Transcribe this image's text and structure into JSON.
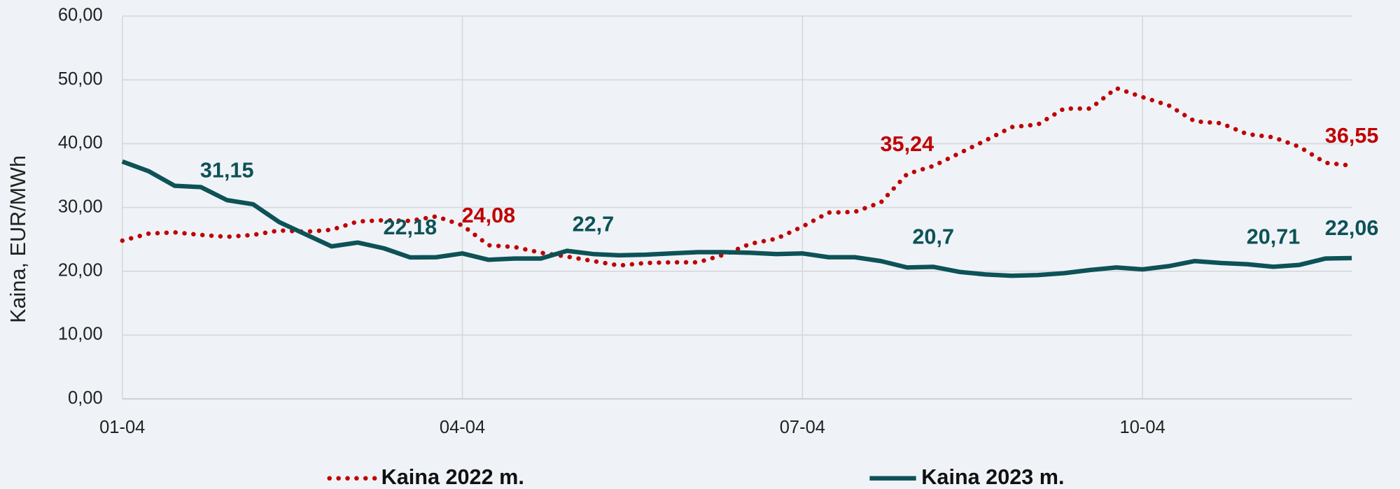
{
  "chart_data": {
    "type": "line",
    "y_label": "Kaina, EUR/MWh",
    "categories": [
      "01-04",
      null,
      null,
      null,
      null,
      null,
      null,
      null,
      null,
      null,
      null,
      null,
      null,
      "04-04",
      null,
      null,
      null,
      null,
      null,
      null,
      null,
      null,
      null,
      null,
      null,
      null,
      "07-04",
      null,
      null,
      null,
      null,
      null,
      null,
      null,
      null,
      null,
      null,
      null,
      null,
      "10-04",
      null,
      null,
      null,
      null,
      null,
      null,
      null,
      null
    ],
    "ylim": [
      0,
      60
    ],
    "yticks": [
      {
        "value": 0,
        "label": "0,00"
      },
      {
        "value": 10,
        "label": "10,00"
      },
      {
        "value": 20,
        "label": "20,00"
      },
      {
        "value": 30,
        "label": "30,00"
      },
      {
        "value": 40,
        "label": "40,00"
      },
      {
        "value": 50,
        "label": "50,00"
      },
      {
        "value": 60,
        "label": "60,00"
      }
    ],
    "grid": true,
    "legend": "bottom",
    "series": [
      {
        "name": "Kaina 2022 m.",
        "color": "#c00000",
        "style": "dotted",
        "values": [
          24.8,
          25.9,
          26.1,
          25.7,
          25.4,
          25.7,
          26.4,
          26.2,
          26.5,
          27.8,
          28.0,
          27.9,
          28.6,
          27.2,
          24.08,
          23.8,
          22.9,
          22.3,
          21.6,
          20.9,
          21.3,
          21.4,
          21.4,
          22.6,
          24.3,
          25.1,
          27.0,
          29.2,
          29.3,
          30.8,
          35.24,
          36.5,
          38.5,
          40.5,
          42.6,
          43.0,
          45.5,
          45.5,
          48.7,
          47.3,
          46.0,
          43.5,
          43.2,
          41.5,
          41.0,
          39.5,
          37.0,
          36.55
        ],
        "value_labels": [
          null,
          null,
          null,
          null,
          null,
          null,
          null,
          null,
          null,
          null,
          null,
          null,
          null,
          null,
          "24,08",
          null,
          null,
          null,
          null,
          null,
          null,
          null,
          null,
          null,
          null,
          null,
          null,
          null,
          null,
          null,
          "35,24",
          null,
          null,
          null,
          null,
          null,
          null,
          null,
          null,
          null,
          null,
          null,
          null,
          null,
          null,
          null,
          null,
          "36,55"
        ]
      },
      {
        "name": "Kaina 2023 m.",
        "color": "#0d5257",
        "style": "solid",
        "values": [
          37.2,
          35.7,
          33.4,
          33.2,
          31.15,
          30.5,
          27.7,
          25.8,
          23.9,
          24.5,
          23.6,
          22.18,
          22.2,
          22.8,
          21.8,
          22.0,
          22.0,
          23.2,
          22.7,
          22.5,
          22.6,
          22.8,
          23.0,
          23.0,
          22.9,
          22.7,
          22.8,
          22.2,
          22.2,
          21.6,
          20.6,
          20.7,
          19.9,
          19.5,
          19.3,
          19.4,
          19.7,
          20.2,
          20.6,
          20.3,
          20.8,
          21.6,
          21.3,
          21.1,
          20.71,
          21.0,
          22.0,
          22.06
        ],
        "value_labels": [
          null,
          null,
          null,
          null,
          "31,15",
          null,
          null,
          null,
          null,
          null,
          null,
          "22,18",
          null,
          null,
          null,
          null,
          null,
          null,
          "22,7",
          null,
          null,
          null,
          null,
          null,
          null,
          null,
          null,
          null,
          null,
          null,
          null,
          "20,7",
          null,
          null,
          null,
          null,
          null,
          null,
          null,
          null,
          null,
          null,
          null,
          null,
          "20,71",
          null,
          null,
          "22,06"
        ]
      }
    ]
  }
}
